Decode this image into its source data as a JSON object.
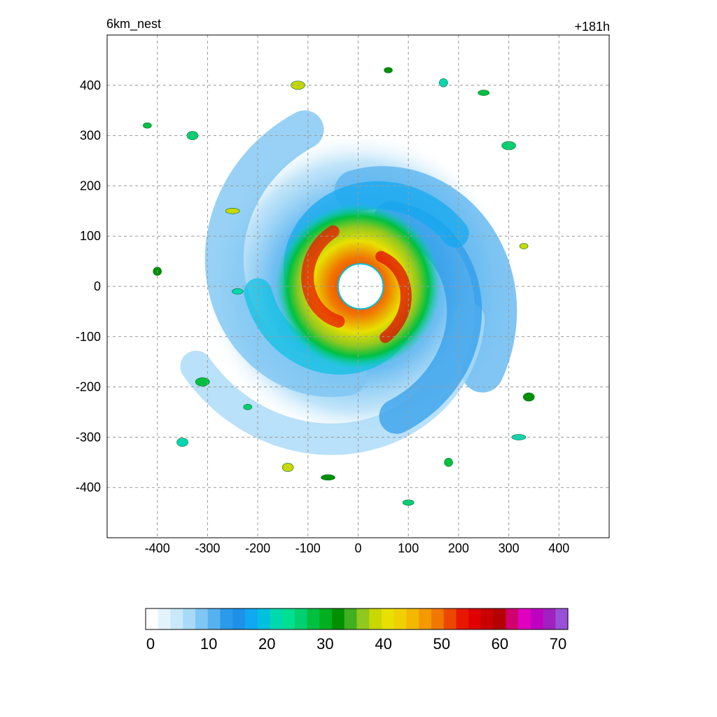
{
  "chart_data": {
    "type": "heatmap",
    "title_left": "6km_nest",
    "title_right": "+181h",
    "xlabel": "",
    "ylabel": "",
    "xlim": [
      -500,
      500
    ],
    "ylim": [
      -500,
      500
    ],
    "x_ticks": [
      "-400",
      "-300",
      "-200",
      "-100",
      "0",
      "100",
      "200",
      "300",
      "400"
    ],
    "y_ticks": [
      "400",
      "300",
      "200",
      "100",
      "0",
      "-100",
      "-200",
      "-300",
      "-400"
    ],
    "grid": true,
    "colorbar": {
      "range": [
        0,
        70
      ],
      "tick_labels": [
        "0",
        "10",
        "20",
        "30",
        "40",
        "50",
        "60",
        "70"
      ],
      "colors": [
        "#ffffff",
        "#e3f3fc",
        "#c9e8fa",
        "#a8daf7",
        "#7ec6f3",
        "#55b2ef",
        "#2a9ae9",
        "#1e90e8",
        "#10a8f0",
        "#00c0e0",
        "#00d8b0",
        "#00e090",
        "#00d070",
        "#00c040",
        "#00b020",
        "#009000",
        "#40b020",
        "#90c820",
        "#c8d800",
        "#e8e000",
        "#f0d000",
        "#f4b800",
        "#f49a00",
        "#f07800",
        "#ec4800",
        "#e81800",
        "#e00000",
        "#c80000",
        "#b40000",
        "#d00070",
        "#e000c0",
        "#c000c0",
        "#a020c0",
        "#9850d8"
      ]
    },
    "storm": {
      "center": [
        0,
        0
      ],
      "eye_radius_km": 45,
      "peak_value": 55
    }
  }
}
